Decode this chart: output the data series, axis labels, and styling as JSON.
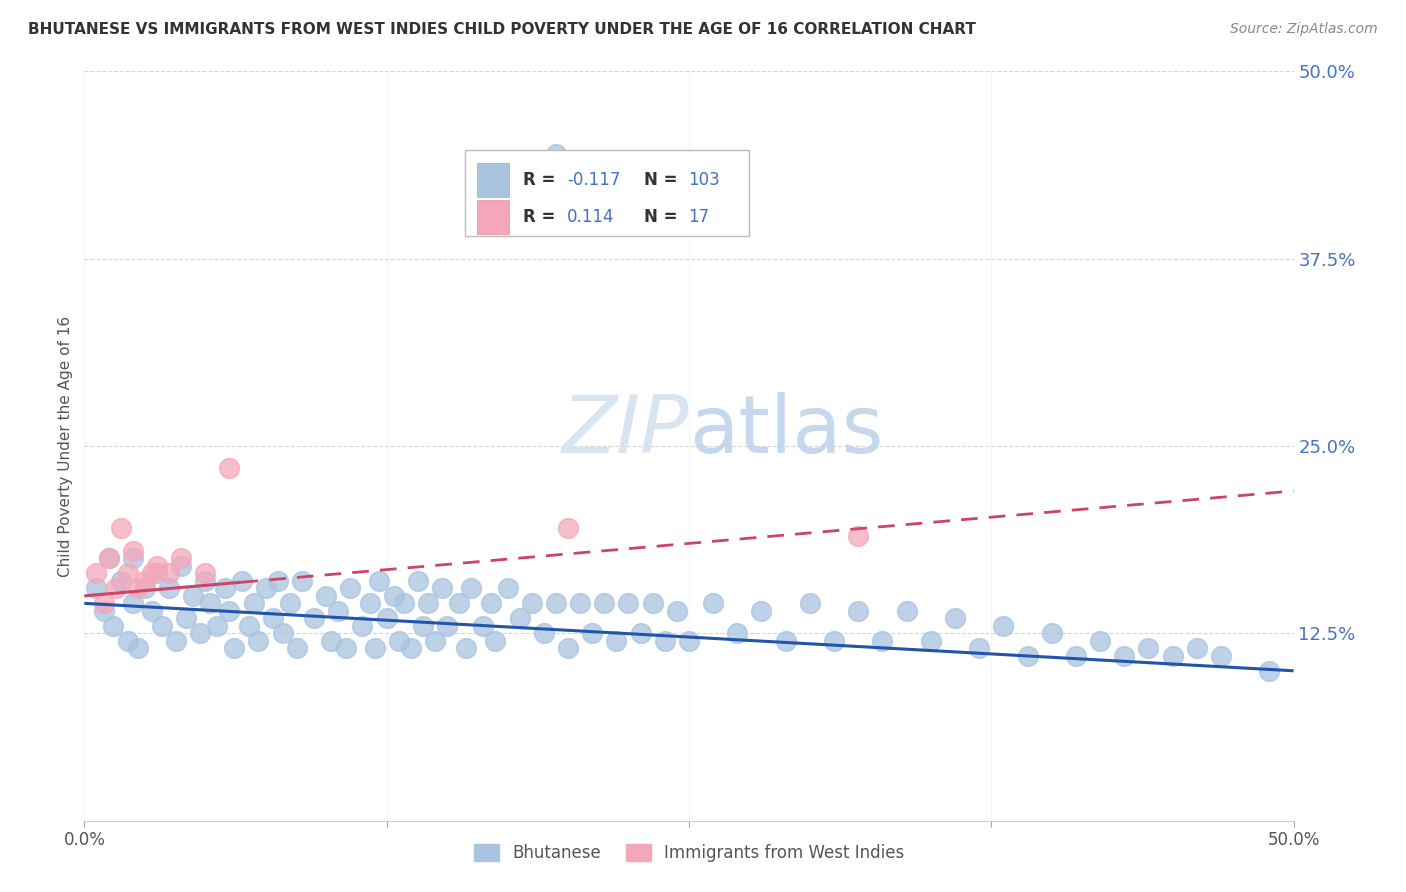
{
  "title": "BHUTANESE VS IMMIGRANTS FROM WEST INDIES CHILD POVERTY UNDER THE AGE OF 16 CORRELATION CHART",
  "source": "Source: ZipAtlas.com",
  "ylabel": "Child Poverty Under the Age of 16",
  "xlim": [
    0.0,
    0.5
  ],
  "ylim": [
    0.0,
    0.5
  ],
  "xtick_positions": [
    0.0,
    0.125,
    0.25,
    0.375,
    0.5
  ],
  "ytick_positions": [
    0.0,
    0.125,
    0.25,
    0.375,
    0.5
  ],
  "xticklabels": [
    "0.0%",
    "",
    "",
    "",
    "50.0%"
  ],
  "yticklabels_right": [
    "",
    "12.5%",
    "25.0%",
    "37.5%",
    "50.0%"
  ],
  "bhutanese_R": -0.117,
  "bhutanese_N": 103,
  "westindies_R": 0.114,
  "westindies_N": 17,
  "bhutanese_color": "#a8c4e0",
  "westindies_color": "#f4a7b9",
  "bhutanese_line_color": "#2255aa",
  "westindies_line_color": "#cc4466",
  "watermark_color": "#d8e4f0",
  "background_color": "#ffffff",
  "grid_color": "#cccccc",
  "tick_color": "#4472c4",
  "title_color": "#333333",
  "source_color": "#888888",
  "legend_R_label_color": "#333333",
  "legend_value_color": "#4472c4",
  "bhutanese_x": [
    0.005,
    0.008,
    0.01,
    0.012,
    0.015,
    0.018,
    0.02,
    0.02,
    0.022,
    0.025,
    0.028,
    0.03,
    0.032,
    0.035,
    0.038,
    0.04,
    0.042,
    0.045,
    0.048,
    0.05,
    0.052,
    0.055,
    0.058,
    0.06,
    0.062,
    0.065,
    0.068,
    0.07,
    0.072,
    0.075,
    0.078,
    0.08,
    0.082,
    0.085,
    0.088,
    0.09,
    0.095,
    0.1,
    0.102,
    0.105,
    0.108,
    0.11,
    0.115,
    0.118,
    0.12,
    0.122,
    0.125,
    0.128,
    0.13,
    0.132,
    0.135,
    0.138,
    0.14,
    0.142,
    0.145,
    0.148,
    0.15,
    0.155,
    0.158,
    0.16,
    0.165,
    0.168,
    0.17,
    0.175,
    0.18,
    0.185,
    0.19,
    0.195,
    0.2,
    0.205,
    0.21,
    0.215,
    0.22,
    0.225,
    0.23,
    0.235,
    0.24,
    0.245,
    0.25,
    0.26,
    0.27,
    0.28,
    0.29,
    0.3,
    0.31,
    0.32,
    0.33,
    0.34,
    0.35,
    0.36,
    0.37,
    0.38,
    0.39,
    0.4,
    0.41,
    0.42,
    0.43,
    0.44,
    0.45,
    0.46,
    0.47,
    0.49,
    0.195
  ],
  "bhutanese_y": [
    0.155,
    0.14,
    0.175,
    0.13,
    0.16,
    0.12,
    0.175,
    0.145,
    0.115,
    0.155,
    0.14,
    0.165,
    0.13,
    0.155,
    0.12,
    0.17,
    0.135,
    0.15,
    0.125,
    0.16,
    0.145,
    0.13,
    0.155,
    0.14,
    0.115,
    0.16,
    0.13,
    0.145,
    0.12,
    0.155,
    0.135,
    0.16,
    0.125,
    0.145,
    0.115,
    0.16,
    0.135,
    0.15,
    0.12,
    0.14,
    0.115,
    0.155,
    0.13,
    0.145,
    0.115,
    0.16,
    0.135,
    0.15,
    0.12,
    0.145,
    0.115,
    0.16,
    0.13,
    0.145,
    0.12,
    0.155,
    0.13,
    0.145,
    0.115,
    0.155,
    0.13,
    0.145,
    0.12,
    0.155,
    0.135,
    0.145,
    0.125,
    0.145,
    0.115,
    0.145,
    0.125,
    0.145,
    0.12,
    0.145,
    0.125,
    0.145,
    0.12,
    0.14,
    0.12,
    0.145,
    0.125,
    0.14,
    0.12,
    0.145,
    0.12,
    0.14,
    0.12,
    0.14,
    0.12,
    0.135,
    0.115,
    0.13,
    0.11,
    0.125,
    0.11,
    0.12,
    0.11,
    0.115,
    0.11,
    0.115,
    0.11,
    0.1,
    0.445
  ],
  "westindies_x": [
    0.005,
    0.008,
    0.01,
    0.013,
    0.015,
    0.018,
    0.02,
    0.022,
    0.025,
    0.028,
    0.03,
    0.035,
    0.04,
    0.05,
    0.06,
    0.2,
    0.32
  ],
  "westindies_y": [
    0.165,
    0.145,
    0.175,
    0.155,
    0.195,
    0.165,
    0.18,
    0.155,
    0.16,
    0.165,
    0.17,
    0.165,
    0.175,
    0.165,
    0.235,
    0.195,
    0.19
  ]
}
